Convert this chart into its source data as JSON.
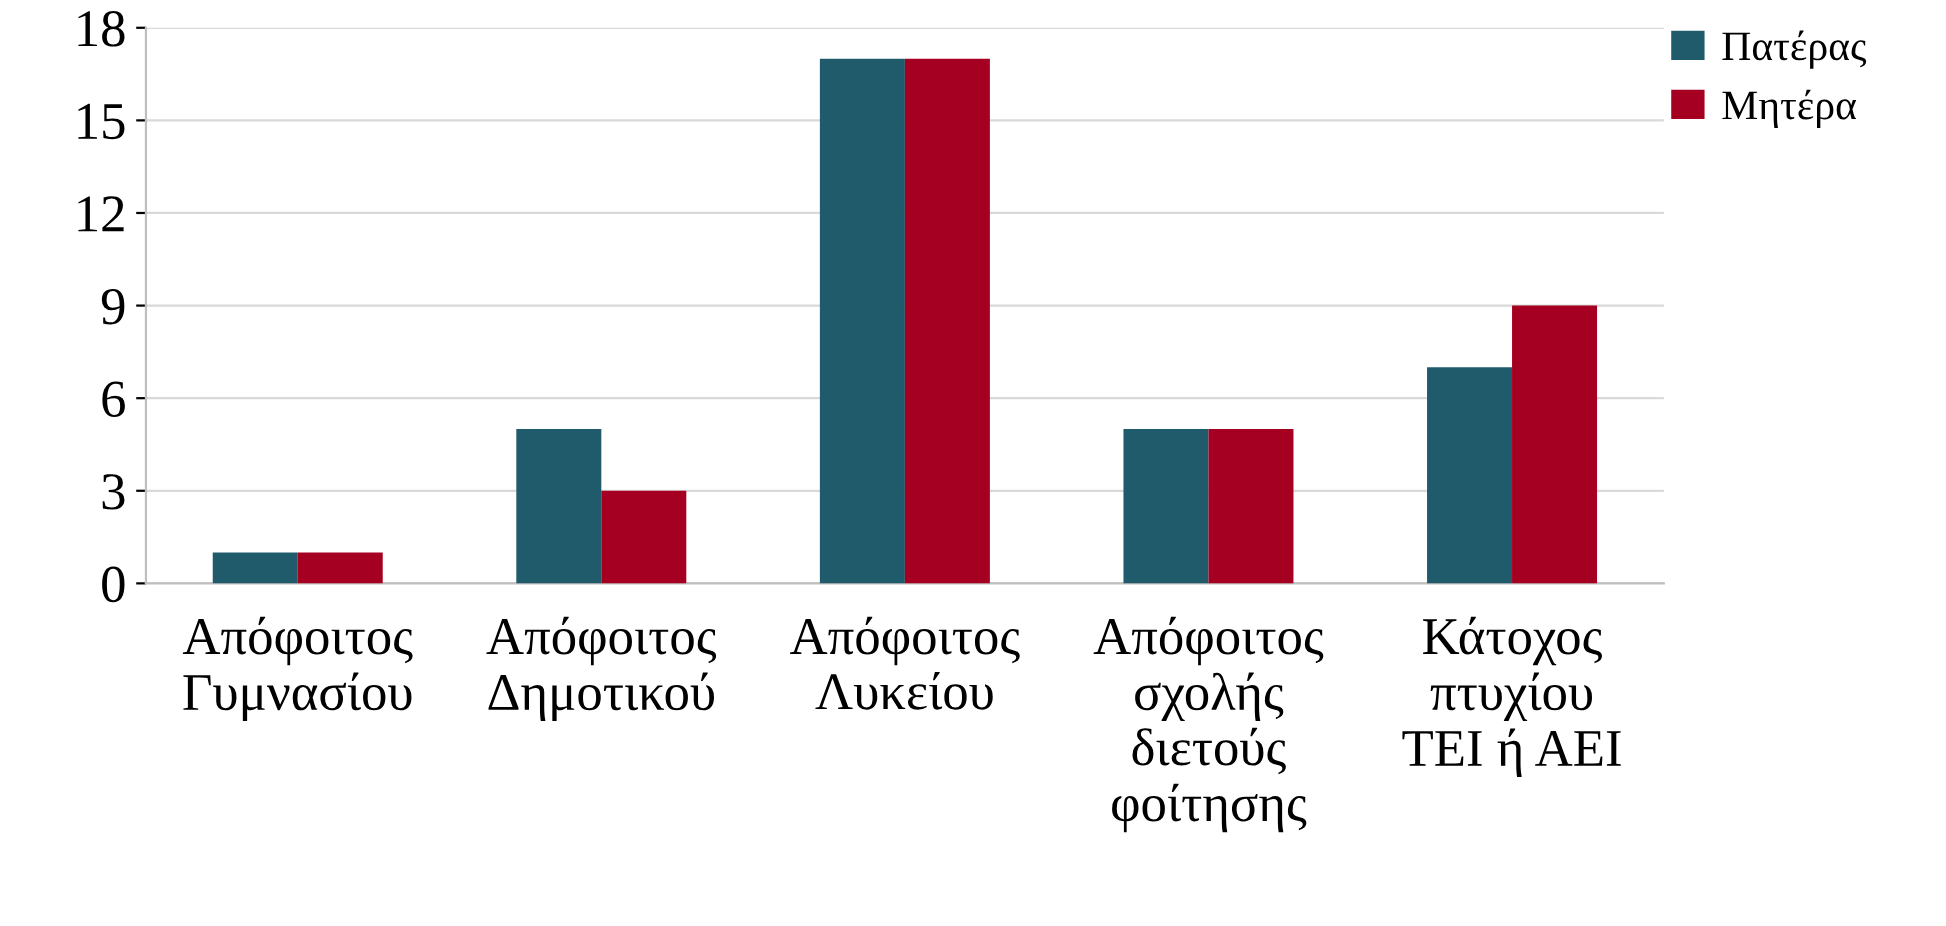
{
  "chart_data": {
    "type": "bar",
    "categories": [
      "Απόφοιτος\nΓυμνασίου",
      "Απόφοιτος\nΔημοτικού",
      "Απόφοιτος\nΛυκείου",
      "Απόφοιτος\nσχολής\nδιετούς\nφοίτησης",
      "Κάτοχος\nπτυχίου\nΤΕΙ ή ΑΕΙ"
    ],
    "series": [
      {
        "name": "Πατέρας",
        "color": "#1f5b6b",
        "values": [
          1,
          5,
          17,
          5,
          7
        ]
      },
      {
        "name": "Μητέρα",
        "color": "#a50021",
        "values": [
          1,
          3,
          17,
          5,
          9
        ]
      }
    ],
    "ylim": [
      0,
      18
    ],
    "yticks": [
      0,
      3,
      6,
      9,
      12,
      15,
      18
    ],
    "grid": "y",
    "legend": "top right"
  }
}
